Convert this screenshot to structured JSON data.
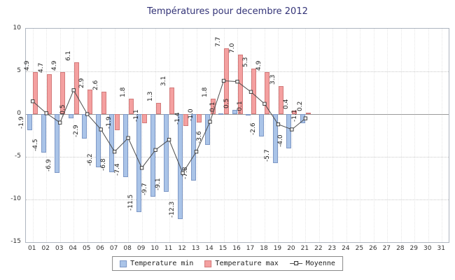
{
  "chart_data": {
    "type": "bar",
    "title": "Températures pour decembre 2012",
    "categories": [
      "01",
      "02",
      "03",
      "04",
      "05",
      "06",
      "07",
      "08",
      "09",
      "10",
      "11",
      "12",
      "13",
      "14",
      "15",
      "16",
      "17",
      "18",
      "19",
      "20",
      "21",
      "22",
      "23",
      "24",
      "25",
      "26",
      "27",
      "28",
      "29",
      "30",
      "31"
    ],
    "series": [
      {
        "name": "Temperature min",
        "values": [
          -1.9,
          -4.5,
          -6.9,
          -0.5,
          -2.9,
          -6.2,
          -6.8,
          -7.4,
          -11.5,
          -9.7,
          -9.1,
          -12.3,
          -7.8,
          -3.6,
          0.1,
          0.5,
          -0.1,
          -2.6,
          -5.7,
          -4.0,
          -1.1
        ]
      },
      {
        "name": "Temperature max",
        "values": [
          4.9,
          4.7,
          4.9,
          6.1,
          2.9,
          2.6,
          -1.9,
          1.8,
          -1.1,
          1.3,
          3.1,
          -1.4,
          -1.0,
          1.8,
          7.7,
          7.0,
          5.3,
          4.9,
          3.3,
          0.4,
          0.2
        ]
      },
      {
        "name": "Moyenne",
        "values": [
          1.5,
          0.1,
          -1.0,
          2.8,
          0.0,
          -1.8,
          -4.4,
          -2.8,
          -6.3,
          -4.2,
          -3.0,
          -6.9,
          -4.4,
          -0.9,
          3.9,
          3.8,
          2.6,
          1.2,
          -1.2,
          -1.8,
          -0.5
        ]
      }
    ],
    "ylim": [
      -15,
      10
    ],
    "yticks": [
      10,
      5,
      0,
      -5,
      -10,
      -15
    ],
    "grid": "dotted",
    "legend_position": "bottom",
    "value_labels": "rotated-90"
  },
  "colors": {
    "title": "#333377",
    "axis_text": "#333333",
    "min_fill": "#aac4e8",
    "min_stroke": "#7e98c6",
    "max_fill": "#f4a0a0",
    "max_stroke": "#d27b7b",
    "line": "#4d4d4d",
    "marker_fill": "#f2f2f2",
    "marker_stroke": "#333333"
  }
}
